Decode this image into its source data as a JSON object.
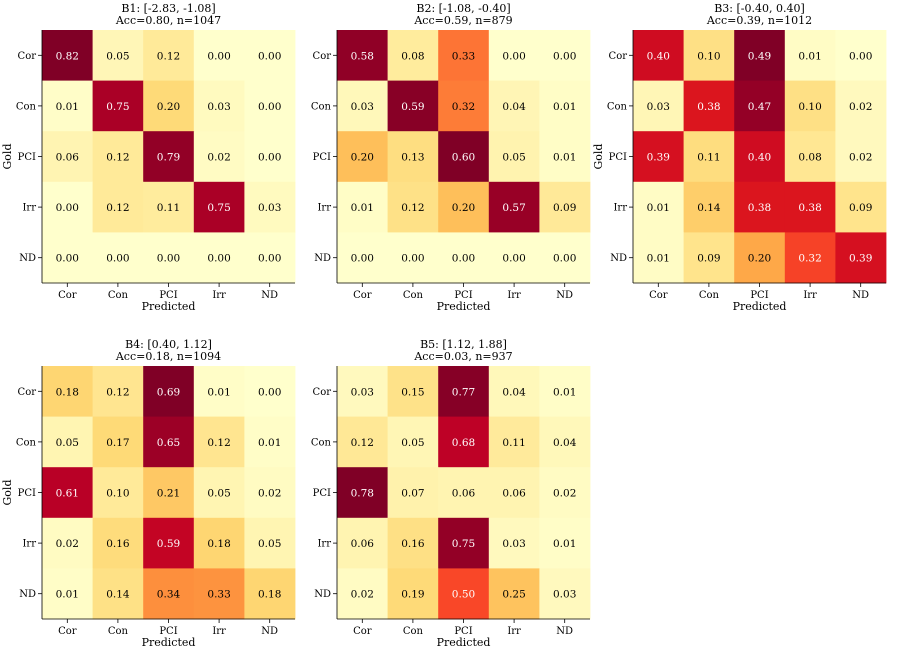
{
  "figure": {
    "background": "#ffffff"
  },
  "chart_data": [
    {
      "type": "heatmap",
      "title_line1": "B1: [-2.83, -1.08]",
      "title_line2": "Acc=0.80, n=1047",
      "xlabel": "Predicted",
      "ylabel": "Gold",
      "x_tick_labels": [
        "Cor",
        "Con",
        "PCI",
        "Irr",
        "ND"
      ],
      "y_tick_labels": [
        "Cor",
        "Con",
        "PCI",
        "Irr",
        "ND"
      ],
      "values": [
        [
          0.82,
          0.05,
          0.12,
          0.0,
          0.0
        ],
        [
          0.01,
          0.75,
          0.2,
          0.03,
          0.0
        ],
        [
          0.06,
          0.12,
          0.79,
          0.02,
          0.0
        ],
        [
          0.0,
          0.12,
          0.11,
          0.75,
          0.03
        ],
        [
          0.0,
          0.0,
          0.0,
          0.0,
          0.0
        ]
      ],
      "value_labels": [
        [
          "0.82",
          "0.05",
          "0.12",
          "0.00",
          "0.00"
        ],
        [
          "0.01",
          "0.75",
          "0.20",
          "0.03",
          "0.00"
        ],
        [
          "0.06",
          "0.12",
          "0.79",
          "0.02",
          "0.00"
        ],
        [
          "0.00",
          "0.12",
          "0.11",
          "0.75",
          "0.03"
        ],
        [
          "0.00",
          "0.00",
          "0.00",
          "0.00",
          "0.00"
        ]
      ],
      "colormap": "YlOrRd"
    },
    {
      "type": "heatmap",
      "title_line1": "B2: [-1.08, -0.40]",
      "title_line2": "Acc=0.59, n=879",
      "xlabel": "Predicted",
      "ylabel": "",
      "x_tick_labels": [
        "Cor",
        "Con",
        "PCI",
        "Irr",
        "ND"
      ],
      "y_tick_labels": [
        "Cor",
        "Con",
        "PCI",
        "Irr",
        "ND"
      ],
      "values": [
        [
          0.58,
          0.08,
          0.33,
          0.0,
          0.0
        ],
        [
          0.03,
          0.59,
          0.32,
          0.04,
          0.01
        ],
        [
          0.2,
          0.13,
          0.6,
          0.05,
          0.01
        ],
        [
          0.01,
          0.12,
          0.2,
          0.57,
          0.09
        ],
        [
          0.0,
          0.0,
          0.0,
          0.0,
          0.0
        ]
      ],
      "value_labels": [
        [
          "0.58",
          "0.08",
          "0.33",
          "0.00",
          "0.00"
        ],
        [
          "0.03",
          "0.59",
          "0.32",
          "0.04",
          "0.01"
        ],
        [
          "0.20",
          "0.13",
          "0.60",
          "0.05",
          "0.01"
        ],
        [
          "0.01",
          "0.12",
          "0.20",
          "0.57",
          "0.09"
        ],
        [
          "0.00",
          "0.00",
          "0.00",
          "0.00",
          "0.00"
        ]
      ],
      "colormap": "YlOrRd"
    },
    {
      "type": "heatmap",
      "title_line1": "B3: [-0.40, 0.40]",
      "title_line2": "Acc=0.39, n=1012",
      "xlabel": "Predicted",
      "ylabel": "Gold",
      "x_tick_labels": [
        "Cor",
        "Con",
        "PCI",
        "Irr",
        "ND"
      ],
      "y_tick_labels": [
        "Cor",
        "Con",
        "PCI",
        "Irr",
        "ND"
      ],
      "values": [
        [
          0.4,
          0.1,
          0.49,
          0.01,
          0.0
        ],
        [
          0.03,
          0.38,
          0.47,
          0.1,
          0.02
        ],
        [
          0.39,
          0.11,
          0.4,
          0.08,
          0.02
        ],
        [
          0.01,
          0.14,
          0.38,
          0.38,
          0.09
        ],
        [
          0.01,
          0.09,
          0.2,
          0.32,
          0.39
        ]
      ],
      "value_labels": [
        [
          "0.40",
          "0.10",
          "0.49",
          "0.01",
          "0.00"
        ],
        [
          "0.03",
          "0.38",
          "0.47",
          "0.10",
          "0.02"
        ],
        [
          "0.39",
          "0.11",
          "0.40",
          "0.08",
          "0.02"
        ],
        [
          "0.01",
          "0.14",
          "0.38",
          "0.38",
          "0.09"
        ],
        [
          "0.01",
          "0.09",
          "0.20",
          "0.32",
          "0.39"
        ]
      ],
      "colormap": "YlOrRd"
    },
    {
      "type": "heatmap",
      "title_line1": "B4: [0.40, 1.12]",
      "title_line2": "Acc=0.18, n=1094",
      "xlabel": "Predicted",
      "ylabel": "Gold",
      "x_tick_labels": [
        "Cor",
        "Con",
        "PCI",
        "Irr",
        "ND"
      ],
      "y_tick_labels": [
        "Cor",
        "Con",
        "PCI",
        "Irr",
        "ND"
      ],
      "values": [
        [
          0.18,
          0.12,
          0.69,
          0.01,
          0.0
        ],
        [
          0.05,
          0.17,
          0.65,
          0.12,
          0.01
        ],
        [
          0.61,
          0.1,
          0.21,
          0.05,
          0.02
        ],
        [
          0.02,
          0.16,
          0.59,
          0.18,
          0.05
        ],
        [
          0.01,
          0.14,
          0.34,
          0.33,
          0.18
        ]
      ],
      "value_labels": [
        [
          "0.18",
          "0.12",
          "0.69",
          "0.01",
          "0.00"
        ],
        [
          "0.05",
          "0.17",
          "0.65",
          "0.12",
          "0.01"
        ],
        [
          "0.61",
          "0.10",
          "0.21",
          "0.05",
          "0.02"
        ],
        [
          "0.02",
          "0.16",
          "0.59",
          "0.18",
          "0.05"
        ],
        [
          "0.01",
          "0.14",
          "0.34",
          "0.33",
          "0.18"
        ]
      ],
      "colormap": "YlOrRd"
    },
    {
      "type": "heatmap",
      "title_line1": "B5: [1.12, 1.88]",
      "title_line2": "Acc=0.03, n=937",
      "xlabel": "Predicted",
      "ylabel": "",
      "x_tick_labels": [
        "Cor",
        "Con",
        "PCI",
        "Irr",
        "ND"
      ],
      "y_tick_labels": [
        "Cor",
        "Con",
        "PCI",
        "Irr",
        "ND"
      ],
      "values": [
        [
          0.03,
          0.15,
          0.77,
          0.04,
          0.01
        ],
        [
          0.12,
          0.05,
          0.68,
          0.11,
          0.04
        ],
        [
          0.78,
          0.07,
          0.06,
          0.06,
          0.02
        ],
        [
          0.06,
          0.16,
          0.75,
          0.03,
          0.01
        ],
        [
          0.02,
          0.19,
          0.5,
          0.25,
          0.03
        ]
      ],
      "value_labels": [
        [
          "0.03",
          "0.15",
          "0.77",
          "0.04",
          "0.01"
        ],
        [
          "0.12",
          "0.05",
          "0.68",
          "0.11",
          "0.04"
        ],
        [
          "0.78",
          "0.07",
          "0.06",
          "0.06",
          "0.02"
        ],
        [
          "0.06",
          "0.16",
          "0.75",
          "0.03",
          "0.01"
        ],
        [
          "0.02",
          "0.19",
          "0.50",
          "0.25",
          "0.03"
        ]
      ],
      "colormap": "YlOrRd"
    }
  ]
}
